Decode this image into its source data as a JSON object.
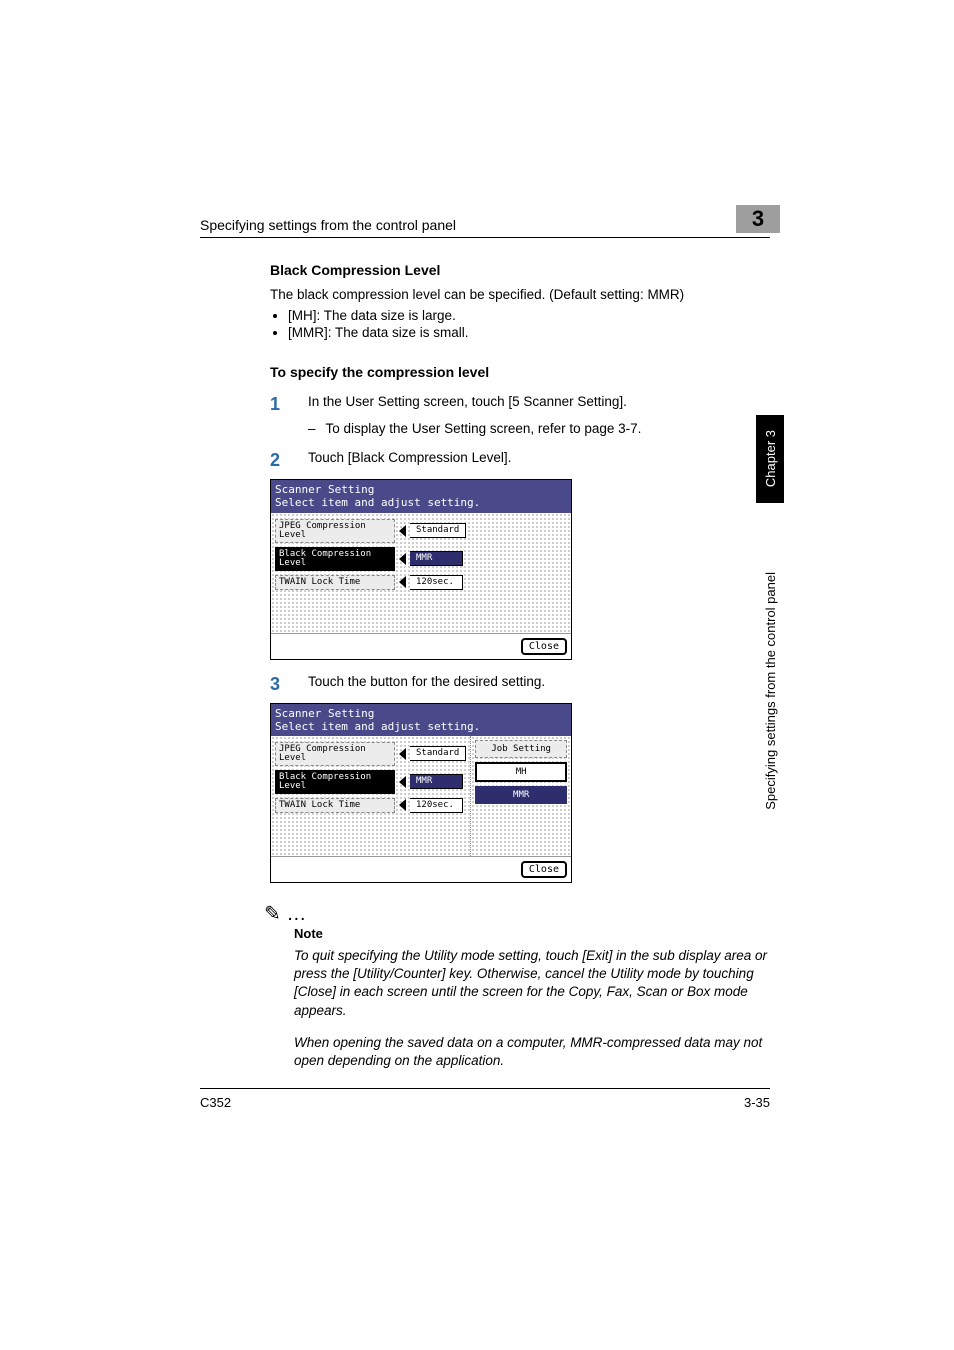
{
  "header": {
    "running_title": "Specifying settings from the control panel",
    "chapter_number": "3"
  },
  "side": {
    "tab_label": "Chapter 3",
    "side_label": "Specifying settings from the control panel"
  },
  "footer": {
    "model": "C352",
    "page": "3-35"
  },
  "section": {
    "title": "Black Compression Level",
    "intro": "The black compression level can be specified. (Default setting: MMR)",
    "bullets": [
      "[MH]: The data size is large.",
      "[MMR]: The data size is small."
    ],
    "procedure_title": "To specify the compression level",
    "steps": {
      "1": {
        "text": "In the User Setting screen, touch [5 Scanner Setting].",
        "sub": "To display the User Setting screen, refer to page 3-7."
      },
      "2": {
        "text": "Touch [Black Compression Level]."
      },
      "3": {
        "text": "Touch the button for the desired setting."
      }
    }
  },
  "screens": {
    "common": {
      "title_line1": "Scanner Setting",
      "title_line2": "Select item and adjust setting.",
      "rows": {
        "jpeg_label": "JPEG Compression\nLevel",
        "jpeg_value": "Standard",
        "black_label": "Black Compression\nLevel",
        "black_value": "MMR",
        "twain_label": "TWAIN Lock Time",
        "twain_value": "120sec."
      },
      "close": "Close"
    },
    "right_panel": {
      "job_setting": "Job Setting",
      "mh": "MH",
      "mmr": "MMR"
    }
  },
  "note": {
    "symbol": "✎ …",
    "heading": "Note",
    "body1": "To quit specifying the Utility mode setting, touch [Exit] in the sub display area or press the [Utility/Counter] key. Otherwise, cancel the Utility mode by touching [Close] in each screen until the screen for the Copy, Fax, Scan or Box mode appears.",
    "body2": "When opening the saved data on a computer, MMR-compressed data may not open depending on the application."
  },
  "colors": {
    "chapter_tab_bg": "#9e9e9e",
    "step_number": "#2b6aa9",
    "screen_header_bg": "#4a4a8a",
    "selected_bg": "#2e2e6e"
  }
}
